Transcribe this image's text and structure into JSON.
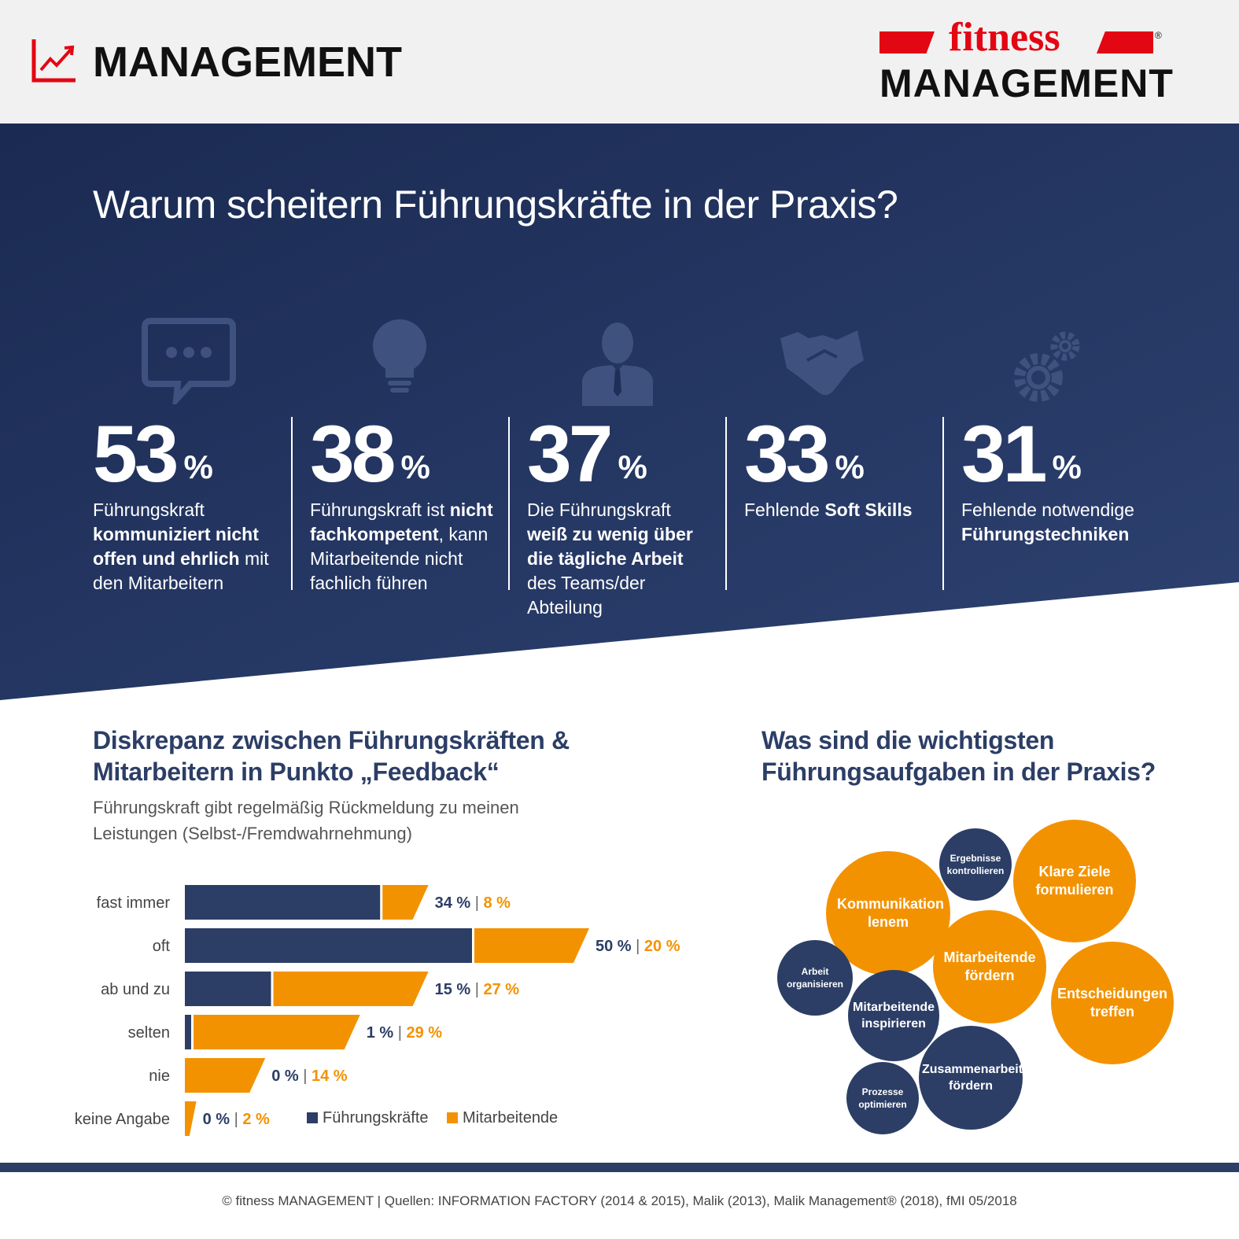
{
  "header": {
    "section_title": "MANAGEMENT",
    "logo_top": "fitness",
    "logo_bottom": "MANAGEMENT",
    "logo_mark": "®"
  },
  "colors": {
    "navy": "#2c3e66",
    "orange": "#f39200",
    "red": "#e30613"
  },
  "hero": {
    "title": "Warum scheitern Führungskräfte in der Praxis?",
    "stats": [
      {
        "icon": "speech-bubble-icon",
        "value": "53",
        "unit": "%",
        "text_html": "Führungskraft <b>kommuniziert nicht offen und ehrlich</b> mit den Mitarbeitern"
      },
      {
        "icon": "lightbulb-icon",
        "value": "38",
        "unit": "%",
        "text_html": "Führungskraft ist <b>nicht fachkompetent</b>, kann Mitarbeitende nicht fachlich führen"
      },
      {
        "icon": "businessman-icon",
        "value": "37",
        "unit": "%",
        "text_html": "Die Führungskraft <b>weiß zu wenig über die tägliche Arbeit</b> des Teams/der Abteilung"
      },
      {
        "icon": "handshake-icon",
        "value": "33",
        "unit": "%",
        "text_html": "Fehlende <b>Soft Skills</b>"
      },
      {
        "icon": "gears-icon",
        "value": "31",
        "unit": "%",
        "text_html": "Fehlende notwendige <b>Führungstechniken</b>"
      }
    ]
  },
  "feedback": {
    "title_line1": "Diskrepanz zwischen Führungskräften &",
    "title_line2": "Mitarbeitern in Punkto „Feedback“",
    "subtitle": "Führungskraft gibt regelmäßig Rückmeldung zu meinen Leistungen (Selbst-/Fremdwahrnehmung)"
  },
  "chart_data": {
    "type": "bar",
    "orientation": "horizontal",
    "stacked": true,
    "categories": [
      "fast immer",
      "oft",
      "ab und zu",
      "selten",
      "nie",
      "keine Angabe"
    ],
    "series": [
      {
        "name": "Führungskräfte",
        "values": [
          34,
          50,
          15,
          1,
          0,
          0
        ],
        "labels": [
          "34 %",
          "50 %",
          "15 %",
          "1 %",
          "0 %",
          "0 %"
        ],
        "color": "#2c3e66"
      },
      {
        "name": "Mitarbeitende",
        "values": [
          8,
          20,
          27,
          29,
          14,
          2
        ],
        "labels": [
          "8 %",
          "20 %",
          "27 %",
          "29 %",
          "14 %",
          "2 %"
        ],
        "color": "#f39200"
      }
    ],
    "separator": "|",
    "legend": "bottom"
  },
  "tasks": {
    "title_line1": "Was sind die wichtigsten",
    "title_line2": "Führungsaufgaben in der Praxis?",
    "bubbles": [
      {
        "label": "Ergebnisse kontrollieren",
        "color": "navy"
      },
      {
        "label": "Klare Ziele formulieren",
        "color": "orange"
      },
      {
        "label": "Kommunikation lenem",
        "color": "orange"
      },
      {
        "label": "Mitarbeitende fördern",
        "color": "orange"
      },
      {
        "label": "Arbeit organisieren",
        "color": "navy"
      },
      {
        "label": "Entscheidungen treffen",
        "color": "orange"
      },
      {
        "label": "Mitarbeitende inspirieren",
        "color": "navy"
      },
      {
        "label": "Zusammenarbeit fördern",
        "color": "navy"
      },
      {
        "label": "Prozesse optimieren",
        "color": "navy"
      }
    ]
  },
  "footer": {
    "text": "© fitness MANAGEMENT  |  Quellen: INFORMATION FACTORY (2014 & 2015), Malik (2013), Malik Management® (2018), fMI 05/2018"
  }
}
